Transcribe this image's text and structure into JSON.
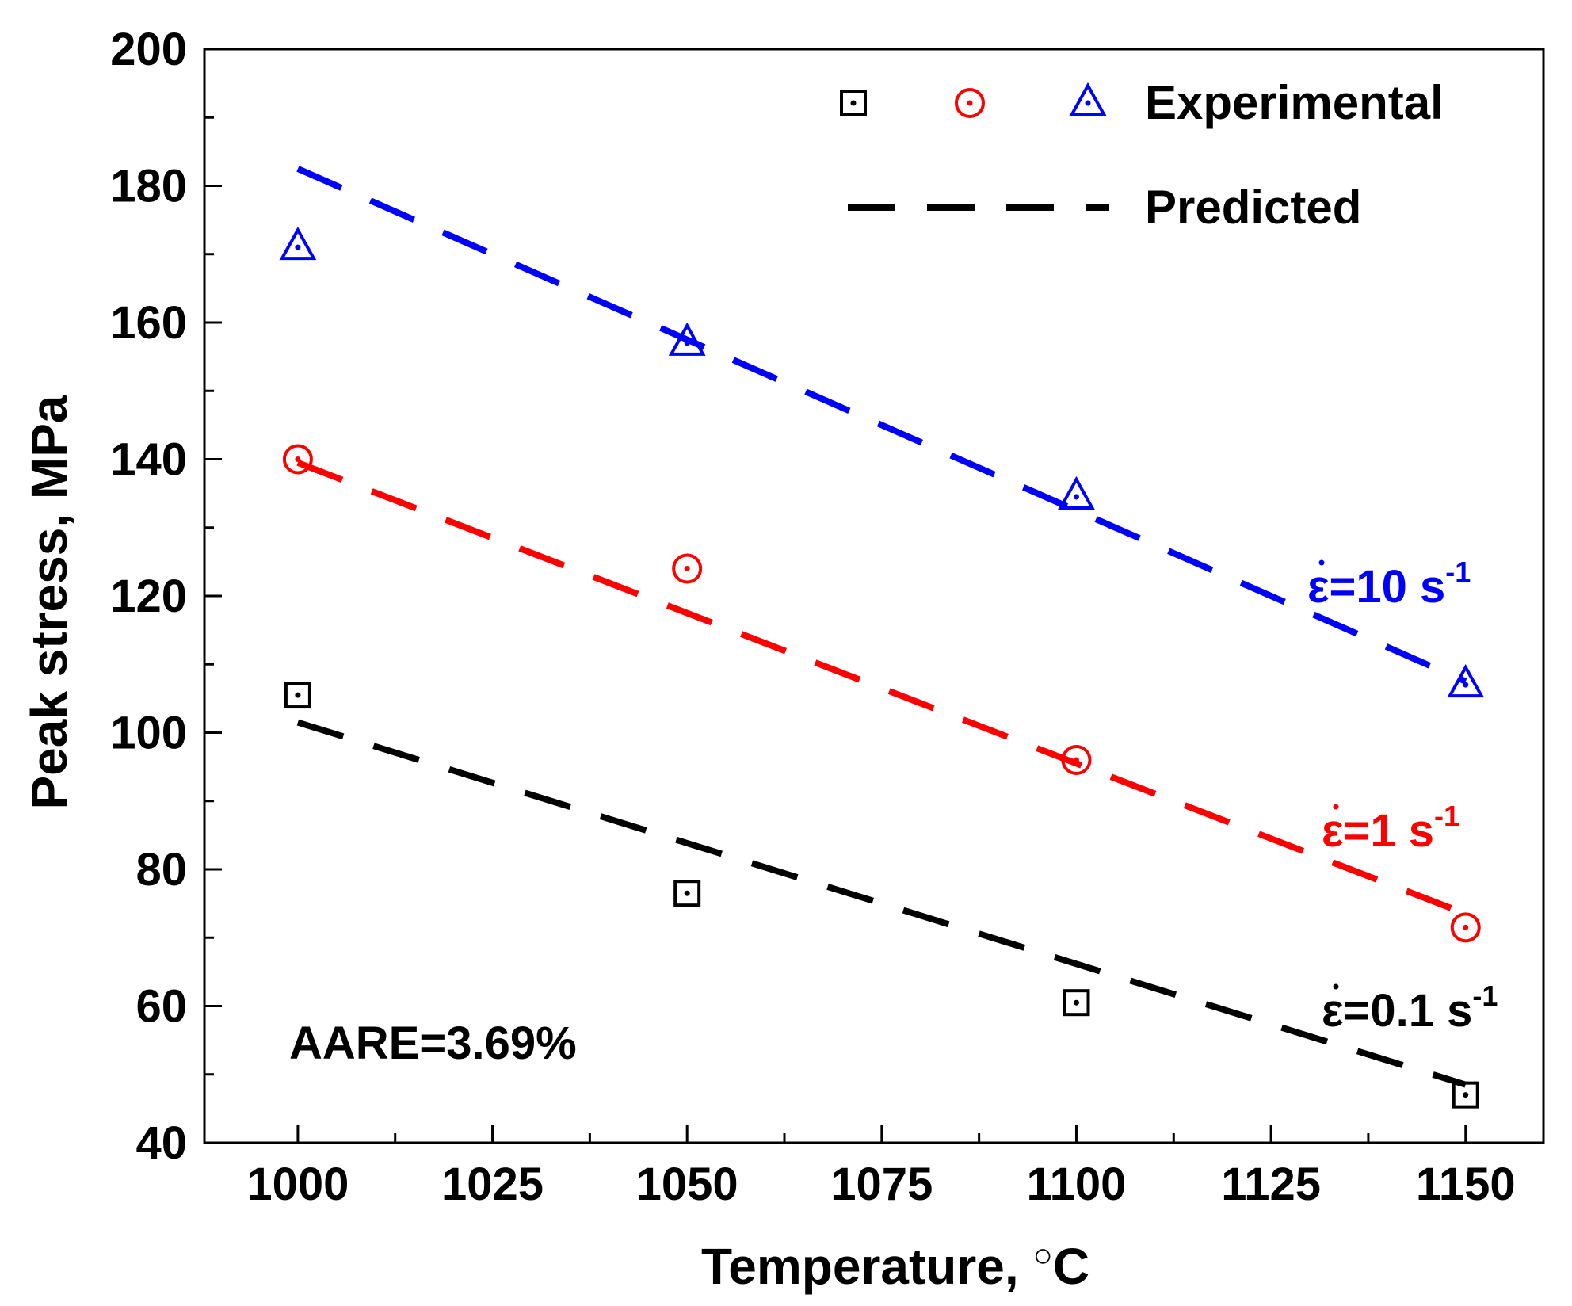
{
  "chart_data": {
    "type": "scatter",
    "title": "",
    "xlabel": "Temperature, ",
    "xlabel_unit": "C",
    "ylabel": "Peak stress, MPa",
    "xlim": [
      988,
      1160
    ],
    "ylim": [
      40,
      200
    ],
    "xticks": [
      1000,
      1025,
      1050,
      1075,
      1100,
      1125,
      1150
    ],
    "yticks": [
      40,
      60,
      80,
      100,
      120,
      140,
      160,
      180,
      200
    ],
    "grid": false,
    "legend_position": "top-right",
    "legend": {
      "experimental_label": "Experimental",
      "predicted_label": "Predicted",
      "predicted_color": "#000000"
    },
    "annotation": "AARE=3.69%",
    "series": [
      {
        "name": "0.1 s-1",
        "color": "#000000",
        "marker": "square",
        "label_symbol": "ε",
        "label_text": "=0.1 s",
        "label_sup": "-1",
        "experimental": {
          "x": [
            1000,
            1050,
            1100,
            1150
          ],
          "y": [
            105.5,
            76.5,
            60.5,
            47
          ]
        },
        "predicted": {
          "x": [
            1000,
            1150
          ],
          "y": [
            101.5,
            48.5
          ]
        }
      },
      {
        "name": "1 s-1",
        "color": "#ff0000",
        "marker": "circle",
        "label_symbol": "ε",
        "label_text": "=1 s",
        "label_sup": "-1",
        "experimental": {
          "x": [
            1000,
            1050,
            1100,
            1150
          ],
          "y": [
            140,
            124,
            96,
            71.5
          ]
        },
        "predicted": {
          "x": [
            1000,
            1150
          ],
          "y": [
            139.5,
            73.5
          ]
        }
      },
      {
        "name": "10 s-1",
        "color": "#0000ff",
        "marker": "triangle",
        "label_symbol": "ε",
        "label_text": "=10 s",
        "label_sup": "-1",
        "experimental": {
          "x": [
            1000,
            1050,
            1100,
            1150
          ],
          "y": [
            171,
            157,
            134.5,
            107
          ]
        },
        "predicted": {
          "x": [
            1000,
            1150
          ],
          "y": [
            182.5,
            107.5
          ]
        }
      }
    ]
  }
}
